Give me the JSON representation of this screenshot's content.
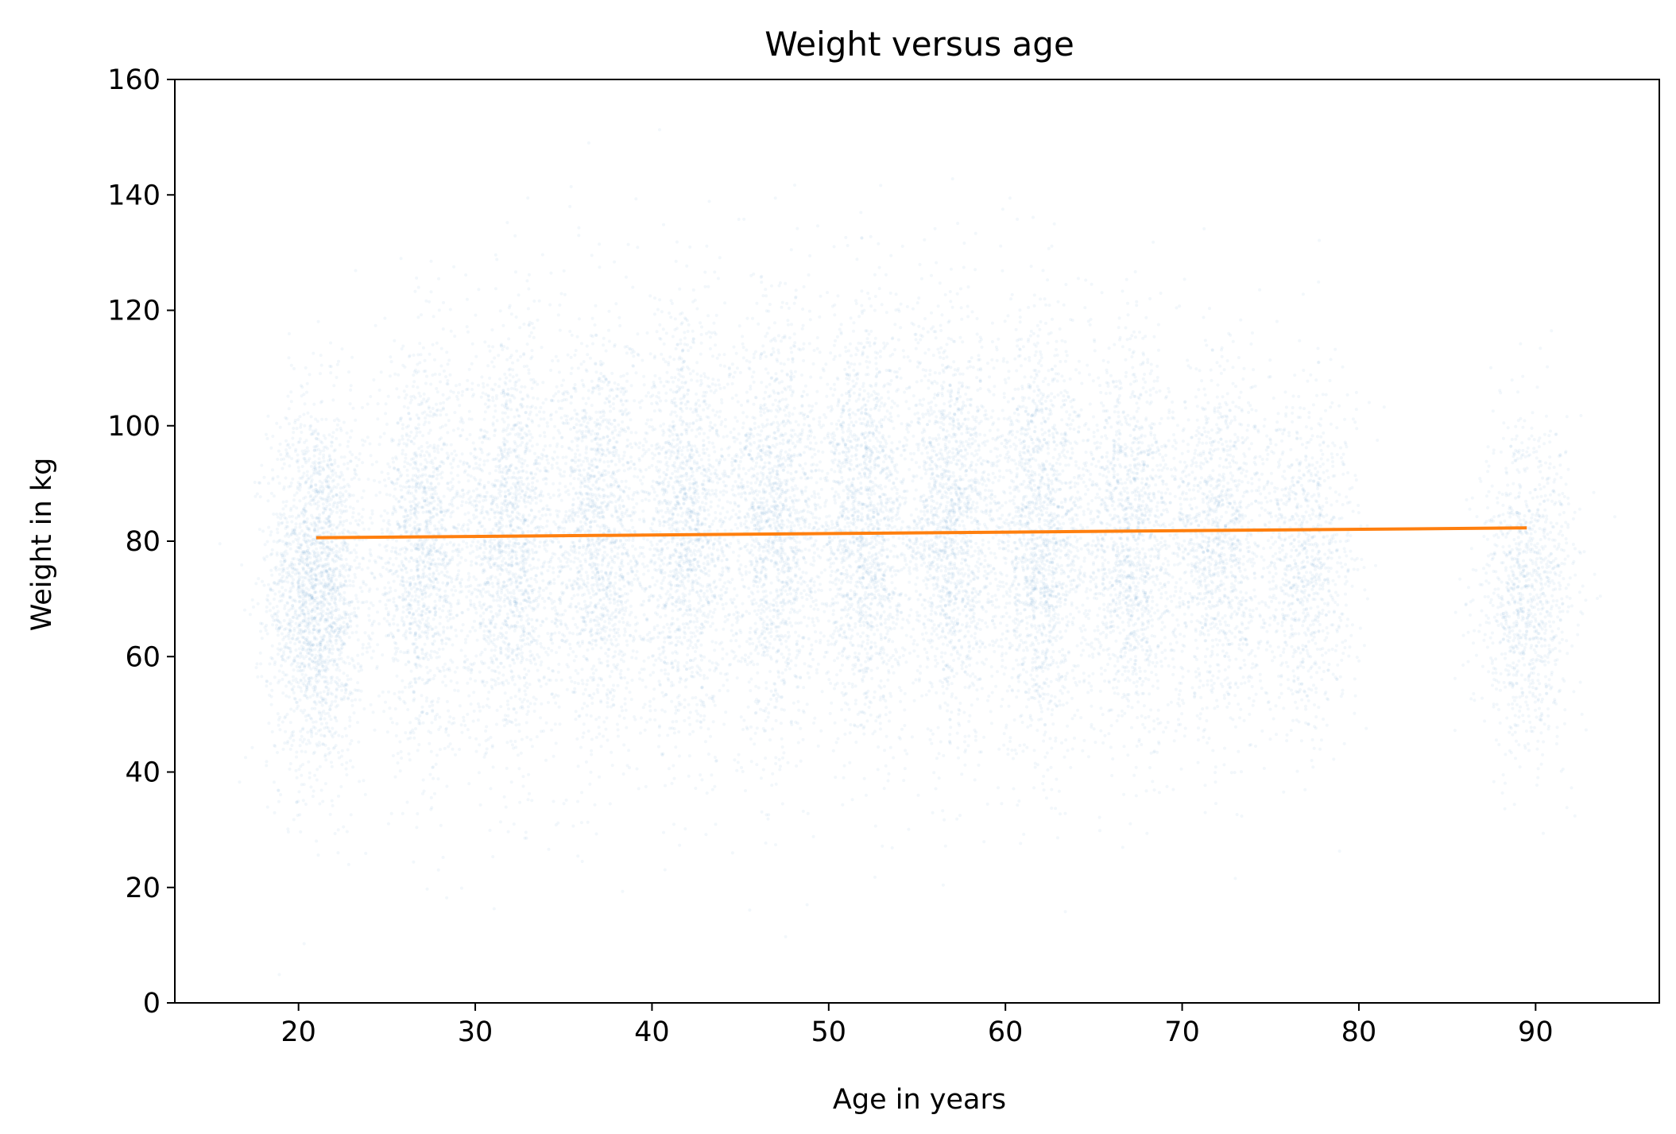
{
  "chart_data": {
    "type": "scatter",
    "title": "Weight versus age",
    "xlabel": "Age in years",
    "ylabel": "Weight in kg",
    "xlim": [
      13,
      97
    ],
    "ylim": [
      0,
      160
    ],
    "xticks": [
      20,
      30,
      40,
      50,
      60,
      70,
      80,
      90
    ],
    "yticks": [
      0,
      20,
      40,
      60,
      80,
      100,
      120,
      140,
      160
    ],
    "grid": false,
    "legend": "none",
    "series": [
      {
        "type": "scatter",
        "color": "#1f77b4",
        "opacity": 0.03,
        "clusters": [
          {
            "age": 21,
            "mean_weight": 72,
            "sd_weight": 16,
            "points": 2200
          },
          {
            "age": 27,
            "mean_weight": 78,
            "sd_weight": 17,
            "points": 1500
          },
          {
            "age": 32,
            "mean_weight": 80,
            "sd_weight": 18,
            "points": 1700
          },
          {
            "age": 37,
            "mean_weight": 81,
            "sd_weight": 18,
            "points": 1600
          },
          {
            "age": 42,
            "mean_weight": 82,
            "sd_weight": 18,
            "points": 1650
          },
          {
            "age": 47,
            "mean_weight": 83,
            "sd_weight": 18,
            "points": 1650
          },
          {
            "age": 52,
            "mean_weight": 83,
            "sd_weight": 18,
            "points": 1750
          },
          {
            "age": 57,
            "mean_weight": 82,
            "sd_weight": 18,
            "points": 1700
          },
          {
            "age": 62,
            "mean_weight": 81,
            "sd_weight": 18,
            "points": 1750
          },
          {
            "age": 67,
            "mean_weight": 80,
            "sd_weight": 17,
            "points": 1500
          },
          {
            "age": 72,
            "mean_weight": 78,
            "sd_weight": 16,
            "points": 1250
          },
          {
            "age": 77,
            "mean_weight": 76,
            "sd_weight": 15,
            "points": 1000
          },
          {
            "age": 89.5,
            "mean_weight": 72,
            "sd_weight": 14,
            "points": 1100
          }
        ]
      },
      {
        "type": "line",
        "color": "#ff7f0e",
        "x": [
          21,
          89.5
        ],
        "y": [
          80.6,
          82.3
        ]
      }
    ]
  }
}
